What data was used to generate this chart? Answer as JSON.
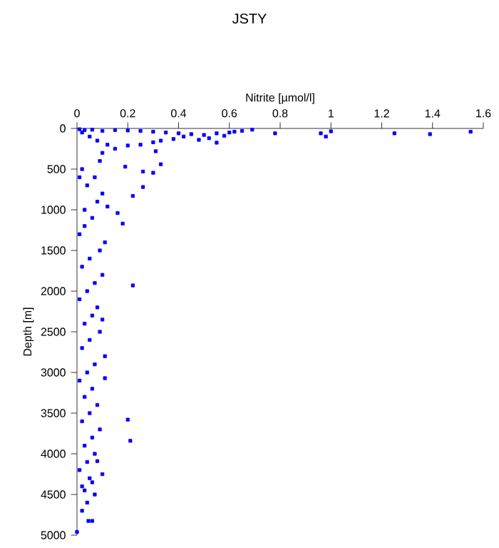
{
  "chart_data": {
    "type": "scatter",
    "title": "JSTY",
    "xlabel": "Nitrite [µmol/l]",
    "ylabel": "Depth [m]",
    "xlim": [
      0,
      1.6
    ],
    "xticks": [
      0,
      0.2,
      0.4,
      0.6,
      0.8,
      1,
      1.2,
      1.4,
      1.6
    ],
    "ylim": [
      5000,
      0
    ],
    "yticks": [
      0,
      500,
      1000,
      1500,
      2000,
      2500,
      3000,
      3500,
      4000,
      4500,
      5000
    ],
    "marker": "square",
    "grid": false,
    "series": [
      {
        "color": "#0000ff",
        "x": [
          0.01,
          0.03,
          0.06,
          0.1,
          0.15,
          0.2,
          0.25,
          0.3,
          0.35,
          0.4,
          0.45,
          0.5,
          0.55,
          0.6,
          0.62,
          0.65,
          0.69,
          0.78,
          0.96,
          0.98,
          1.0,
          1.25,
          1.39,
          1.55,
          0.58,
          0.52,
          0.48,
          0.42,
          0.38,
          0.33,
          0.3,
          0.25,
          0.2,
          0.15,
          0.1,
          0.12,
          0.08,
          0.05,
          0.02,
          0.55,
          0.33,
          0.26,
          0.22,
          0.26,
          0.16,
          0.18,
          0.19,
          0.3,
          0.31,
          0.12,
          0.09,
          0.07,
          0.04,
          0.02,
          0.1,
          0.08,
          0.06,
          0.03,
          0.01,
          0.11,
          0.09,
          0.05,
          0.02,
          0.1,
          0.07,
          0.04,
          0.01,
          0.08,
          0.06,
          0.03,
          0.22,
          0.09,
          0.05,
          0.02,
          0.11,
          0.07,
          0.04,
          0.01,
          0.1,
          0.06,
          0.03,
          0.11,
          0.08,
          0.05,
          0.02,
          0.09,
          0.06,
          0.03,
          0.07,
          0.04,
          0.01,
          0.2,
          0.21,
          0.08,
          0.05,
          0.02,
          0.1,
          0.06,
          0.03,
          0.07,
          0.04,
          0.02,
          0.045,
          0.06,
          0.0,
          0.01,
          0.03
        ],
        "values": [
          10,
          20,
          15,
          30,
          20,
          25,
          30,
          40,
          50,
          60,
          70,
          80,
          60,
          50,
          40,
          30,
          15,
          60,
          60,
          100,
          35,
          60,
          70,
          40,
          90,
          120,
          140,
          100,
          130,
          150,
          170,
          200,
          210,
          250,
          300,
          200,
          150,
          100,
          50,
          175,
          440,
          530,
          830,
          720,
          1040,
          1170,
          470,
          545,
          280,
          960,
          400,
          600,
          700,
          500,
          800,
          900,
          1100,
          1200,
          1300,
          1400,
          1500,
          1600,
          1700,
          1800,
          1900,
          2000,
          2100,
          2200,
          2300,
          2400,
          1930,
          2500,
          2600,
          2700,
          2800,
          2900,
          3000,
          3100,
          2350,
          3200,
          3300,
          3070,
          3400,
          3500,
          3600,
          3700,
          3800,
          3900,
          4000,
          4100,
          4200,
          3580,
          3840,
          4090,
          4300,
          4400,
          4250,
          4350,
          4450,
          4500,
          4600,
          4700,
          4825,
          4825,
          4960,
          600,
          1000
        ]
      }
    ]
  }
}
